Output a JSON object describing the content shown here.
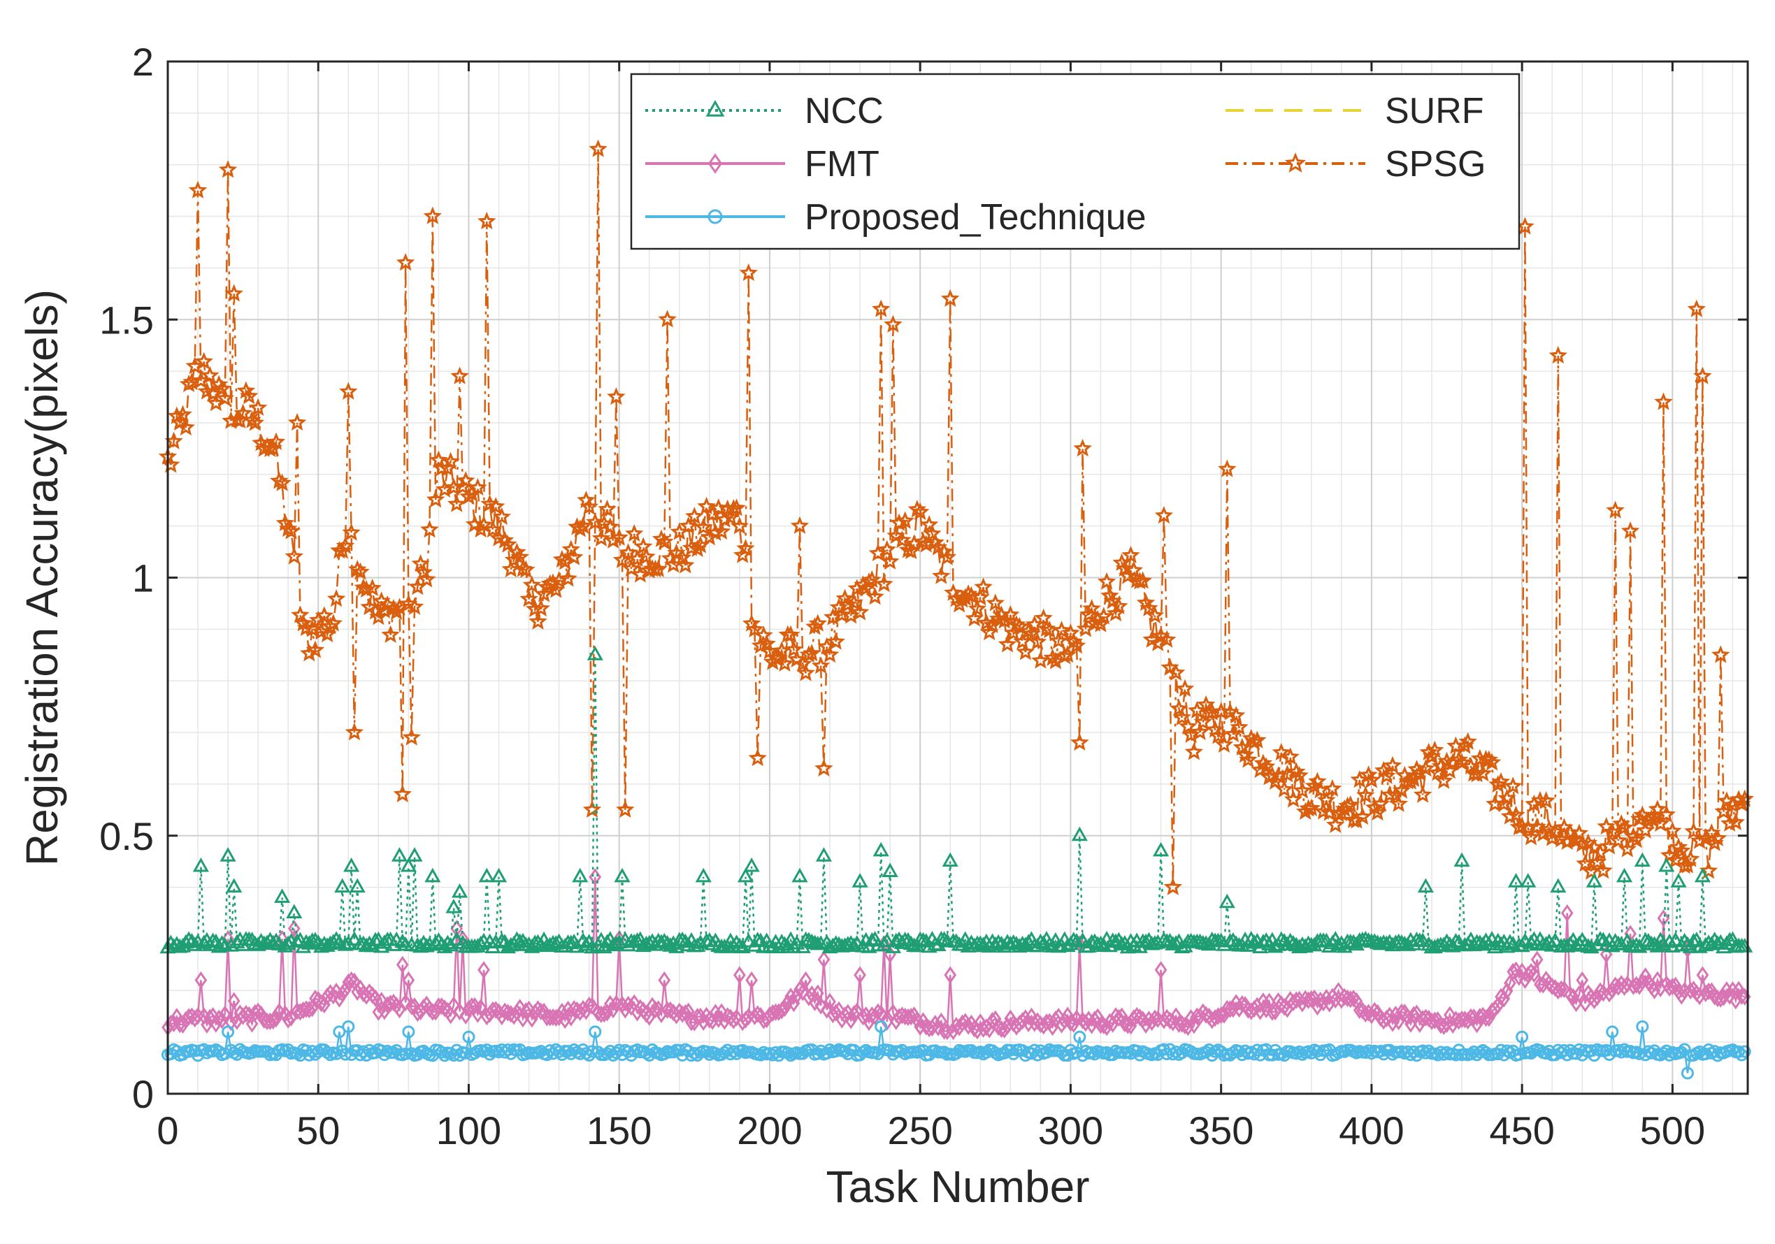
{
  "chart_data": {
    "type": "line",
    "title": "",
    "xlabel": "Task Number",
    "ylabel": "Registration Accuracy(pixels)",
    "xlim": [
      0,
      525
    ],
    "ylim": [
      0,
      2
    ],
    "xticks": [
      0,
      50,
      100,
      150,
      200,
      250,
      300,
      350,
      400,
      450,
      500
    ],
    "yticks": [
      0,
      0.5,
      1,
      1.5,
      2
    ],
    "ytick_labels": [
      "0",
      "0.5",
      "1",
      "1.5",
      "2"
    ],
    "grid": true,
    "minor_grid": true,
    "legend_position": "top-center",
    "series": [
      {
        "name": "NCC",
        "color": "#1f9e74",
        "marker": "triangle",
        "line": "dotted",
        "base": 0.29,
        "noise": 0.008,
        "spikes": [
          [
            11,
            0.44
          ],
          [
            20,
            0.46
          ],
          [
            22,
            0.4
          ],
          [
            38,
            0.38
          ],
          [
            42,
            0.35
          ],
          [
            58,
            0.4
          ],
          [
            61,
            0.44
          ],
          [
            63,
            0.4
          ],
          [
            77,
            0.46
          ],
          [
            80,
            0.44
          ],
          [
            82,
            0.46
          ],
          [
            88,
            0.42
          ],
          [
            95,
            0.36
          ],
          [
            97,
            0.39
          ],
          [
            106,
            0.42
          ],
          [
            110,
            0.42
          ],
          [
            137,
            0.42
          ],
          [
            142,
            0.85
          ],
          [
            151,
            0.42
          ],
          [
            178,
            0.42
          ],
          [
            192,
            0.42
          ],
          [
            194,
            0.44
          ],
          [
            210,
            0.42
          ],
          [
            218,
            0.46
          ],
          [
            230,
            0.41
          ],
          [
            237,
            0.47
          ],
          [
            240,
            0.43
          ],
          [
            260,
            0.45
          ],
          [
            303,
            0.5
          ],
          [
            330,
            0.47
          ],
          [
            352,
            0.37
          ],
          [
            418,
            0.4
          ],
          [
            430,
            0.45
          ],
          [
            448,
            0.41
          ],
          [
            452,
            0.41
          ],
          [
            462,
            0.4
          ],
          [
            474,
            0.41
          ],
          [
            484,
            0.42
          ],
          [
            490,
            0.45
          ],
          [
            498,
            0.44
          ],
          [
            502,
            0.41
          ],
          [
            510,
            0.42
          ]
        ]
      },
      {
        "name": "SURF",
        "color": "#e6d334",
        "marker": "none",
        "line": "dashed",
        "values": []
      },
      {
        "name": "FMT",
        "color": "#d974b4",
        "marker": "diamond",
        "line": "solid",
        "anchors": [
          [
            0,
            0.14
          ],
          [
            40,
            0.15
          ],
          [
            55,
            0.19
          ],
          [
            62,
            0.21
          ],
          [
            70,
            0.17
          ],
          [
            90,
            0.16
          ],
          [
            110,
            0.16
          ],
          [
            130,
            0.15
          ],
          [
            150,
            0.17
          ],
          [
            170,
            0.15
          ],
          [
            200,
            0.15
          ],
          [
            212,
            0.2
          ],
          [
            225,
            0.15
          ],
          [
            240,
            0.15
          ],
          [
            262,
            0.13
          ],
          [
            290,
            0.14
          ],
          [
            320,
            0.14
          ],
          [
            340,
            0.14
          ],
          [
            355,
            0.17
          ],
          [
            375,
            0.17
          ],
          [
            390,
            0.19
          ],
          [
            400,
            0.15
          ],
          [
            430,
            0.14
          ],
          [
            440,
            0.15
          ],
          [
            448,
            0.24
          ],
          [
            470,
            0.18
          ],
          [
            490,
            0.22
          ],
          [
            500,
            0.2
          ],
          [
            525,
            0.19
          ]
        ],
        "noise": 0.012,
        "spikes": [
          [
            11,
            0.22
          ],
          [
            20,
            0.3
          ],
          [
            22,
            0.18
          ],
          [
            38,
            0.3
          ],
          [
            42,
            0.32
          ],
          [
            61,
            0.22
          ],
          [
            78,
            0.25
          ],
          [
            80,
            0.22
          ],
          [
            96,
            0.32
          ],
          [
            98,
            0.3
          ],
          [
            105,
            0.24
          ],
          [
            142,
            0.42
          ],
          [
            150,
            0.3
          ],
          [
            165,
            0.22
          ],
          [
            190,
            0.23
          ],
          [
            194,
            0.22
          ],
          [
            212,
            0.22
          ],
          [
            218,
            0.26
          ],
          [
            230,
            0.23
          ],
          [
            238,
            0.29
          ],
          [
            240,
            0.27
          ],
          [
            260,
            0.23
          ],
          [
            303,
            0.29
          ],
          [
            330,
            0.24
          ],
          [
            455,
            0.26
          ],
          [
            465,
            0.35
          ],
          [
            470,
            0.22
          ],
          [
            478,
            0.27
          ],
          [
            486,
            0.31
          ],
          [
            497,
            0.34
          ],
          [
            505,
            0.28
          ],
          [
            510,
            0.23
          ]
        ]
      },
      {
        "name": "SPSG",
        "color": "#d95f0e",
        "marker": "star",
        "line": "dashdot",
        "anchors": [
          [
            0,
            1.22
          ],
          [
            5,
            1.3
          ],
          [
            10,
            1.4
          ],
          [
            15,
            1.38
          ],
          [
            20,
            1.3
          ],
          [
            25,
            1.33
          ],
          [
            30,
            1.3
          ],
          [
            35,
            1.25
          ],
          [
            40,
            1.1
          ],
          [
            45,
            0.88
          ],
          [
            55,
            0.92
          ],
          [
            60,
            1.15
          ],
          [
            65,
            1.0
          ],
          [
            70,
            0.92
          ],
          [
            80,
            0.95
          ],
          [
            85,
            1.0
          ],
          [
            90,
            1.2
          ],
          [
            100,
            1.15
          ],
          [
            110,
            1.1
          ],
          [
            115,
            1.05
          ],
          [
            120,
            0.95
          ],
          [
            130,
            0.98
          ],
          [
            140,
            1.15
          ],
          [
            150,
            1.05
          ],
          [
            160,
            1.05
          ],
          [
            170,
            1.05
          ],
          [
            180,
            1.1
          ],
          [
            190,
            1.12
          ],
          [
            195,
            0.9
          ],
          [
            200,
            0.85
          ],
          [
            210,
            0.85
          ],
          [
            220,
            0.88
          ],
          [
            230,
            0.95
          ],
          [
            240,
            1.05
          ],
          [
            250,
            1.1
          ],
          [
            255,
            1.05
          ],
          [
            260,
            1.0
          ],
          [
            270,
            0.95
          ],
          [
            280,
            0.9
          ],
          [
            290,
            0.88
          ],
          [
            300,
            0.85
          ],
          [
            310,
            0.95
          ],
          [
            320,
            1.0
          ],
          [
            328,
            0.9
          ],
          [
            335,
            0.8
          ],
          [
            340,
            0.7
          ],
          [
            350,
            0.72
          ],
          [
            360,
            0.68
          ],
          [
            370,
            0.63
          ],
          [
            380,
            0.58
          ],
          [
            390,
            0.56
          ],
          [
            400,
            0.58
          ],
          [
            410,
            0.6
          ],
          [
            420,
            0.63
          ],
          [
            430,
            0.65
          ],
          [
            440,
            0.6
          ],
          [
            450,
            0.55
          ],
          [
            460,
            0.52
          ],
          [
            470,
            0.46
          ],
          [
            480,
            0.48
          ],
          [
            490,
            0.55
          ],
          [
            500,
            0.5
          ],
          [
            510,
            0.45
          ],
          [
            520,
            0.55
          ],
          [
            525,
            0.57
          ]
        ],
        "noise": 0.045,
        "spikes": [
          [
            10,
            1.75
          ],
          [
            20,
            1.79
          ],
          [
            22,
            1.55
          ],
          [
            43,
            1.3
          ],
          [
            60,
            1.36
          ],
          [
            62,
            0.7
          ],
          [
            78,
            0.58
          ],
          [
            79,
            1.61
          ],
          [
            81,
            0.69
          ],
          [
            88,
            1.7
          ],
          [
            97,
            1.39
          ],
          [
            106,
            1.69
          ],
          [
            143,
            1.83
          ],
          [
            141,
            0.55
          ],
          [
            149,
            1.35
          ],
          [
            152,
            0.55
          ],
          [
            166,
            1.5
          ],
          [
            193,
            1.59
          ],
          [
            196,
            0.65
          ],
          [
            210,
            1.1
          ],
          [
            218,
            0.63
          ],
          [
            237,
            1.52
          ],
          [
            241,
            1.49
          ],
          [
            260,
            1.54
          ],
          [
            304,
            1.25
          ],
          [
            303,
            0.68
          ],
          [
            331,
            1.12
          ],
          [
            334,
            0.4
          ],
          [
            352,
            1.21
          ],
          [
            451,
            1.68
          ],
          [
            462,
            1.43
          ],
          [
            481,
            1.13
          ],
          [
            486,
            1.09
          ],
          [
            497,
            1.34
          ],
          [
            508,
            1.52
          ],
          [
            510,
            1.39
          ],
          [
            516,
            0.85
          ]
        ]
      },
      {
        "name": "Proposed_Technique",
        "color": "#4db8e6",
        "marker": "circle",
        "line": "solid",
        "base": 0.08,
        "noise": 0.006,
        "spikes": [
          [
            20,
            0.12
          ],
          [
            57,
            0.12
          ],
          [
            60,
            0.13
          ],
          [
            80,
            0.12
          ],
          [
            100,
            0.11
          ],
          [
            142,
            0.12
          ],
          [
            237,
            0.13
          ],
          [
            303,
            0.11
          ],
          [
            450,
            0.11
          ],
          [
            480,
            0.12
          ],
          [
            490,
            0.13
          ],
          [
            505,
            0.04
          ]
        ]
      }
    ]
  }
}
